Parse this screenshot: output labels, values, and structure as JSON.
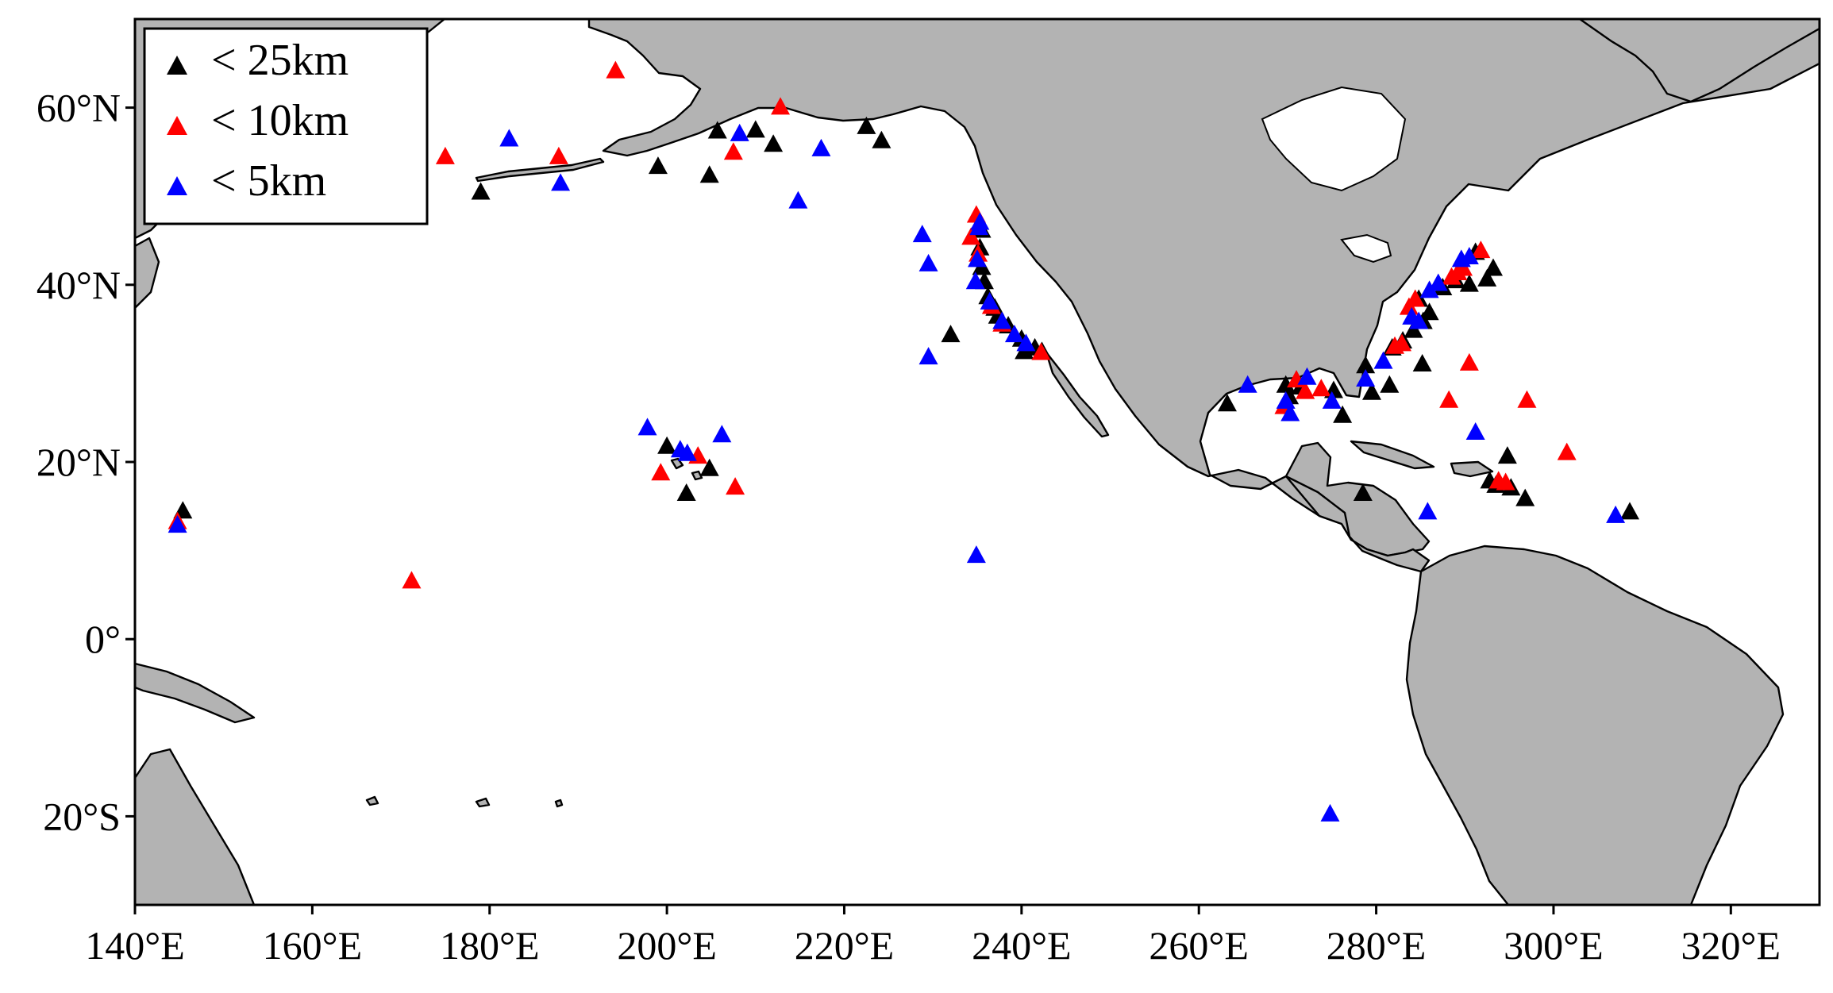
{
  "map": {
    "extent": {
      "lon": [
        140,
        330
      ],
      "lat": [
        -30,
        70
      ]
    },
    "land_color": "#b3b3b3",
    "ocean_color": "#ffffff"
  },
  "axes": {
    "x_ticks": [
      {
        "value": 140,
        "label": "140°E"
      },
      {
        "value": 160,
        "label": "160°E"
      },
      {
        "value": 180,
        "label": "180°E"
      },
      {
        "value": 200,
        "label": "200°E"
      },
      {
        "value": 220,
        "label": "220°E"
      },
      {
        "value": 240,
        "label": "240°E"
      },
      {
        "value": 260,
        "label": "260°E"
      },
      {
        "value": 280,
        "label": "280°E"
      },
      {
        "value": 300,
        "label": "300°E"
      },
      {
        "value": 320,
        "label": "320°E"
      }
    ],
    "y_ticks": [
      {
        "value": 60,
        "label": "60°N"
      },
      {
        "value": 40,
        "label": "40°N"
      },
      {
        "value": 20,
        "label": "20°N"
      },
      {
        "value": 0,
        "label": "0°"
      },
      {
        "value": -20,
        "label": "20°S"
      }
    ]
  },
  "legend": {
    "position": "top-left",
    "items": [
      {
        "key": "k25",
        "label": "< 25km",
        "color": "#000000"
      },
      {
        "key": "k10",
        "label": "< 10km",
        "color": "#ff0000"
      },
      {
        "key": "k5",
        "label": "< 5km",
        "color": "#0000ff"
      }
    ]
  },
  "chart_data": {
    "type": "scatter",
    "x_unit": "longitude (°E)",
    "y_unit": "latitude",
    "series": [
      {
        "name": "< 25km",
        "color": "#000000",
        "points": [
          [
            145.4,
            14.6
          ],
          [
            179,
            50.6
          ],
          [
            199,
            53.5
          ],
          [
            204.8,
            52.5
          ],
          [
            205.7,
            57.5
          ],
          [
            210,
            57.6
          ],
          [
            212,
            56
          ],
          [
            222.5,
            58
          ],
          [
            224.2,
            56.4
          ],
          [
            200,
            21.9
          ],
          [
            202.2,
            16.6
          ],
          [
            204.8,
            19.4
          ],
          [
            235.5,
            46.3
          ],
          [
            235.3,
            44.3
          ],
          [
            235.5,
            42.1
          ],
          [
            235.8,
            40.5
          ],
          [
            236.2,
            38.8
          ],
          [
            237,
            37.5
          ],
          [
            237.3,
            36.6
          ],
          [
            238.5,
            35.5
          ],
          [
            240,
            34
          ],
          [
            240.3,
            32.6
          ],
          [
            241.5,
            33
          ],
          [
            242.3,
            32.6
          ],
          [
            232,
            34.5
          ],
          [
            263.2,
            26.7
          ],
          [
            269.8,
            28.8
          ],
          [
            270.2,
            27.5
          ],
          [
            271.5,
            28.6
          ],
          [
            275.2,
            28.2
          ],
          [
            276.2,
            25.4
          ],
          [
            278.8,
            31
          ],
          [
            279.5,
            28
          ],
          [
            281.5,
            28.8
          ],
          [
            281.8,
            33
          ],
          [
            283,
            33.8
          ],
          [
            284.2,
            35
          ],
          [
            285.3,
            36
          ],
          [
            284.8,
            38.5
          ],
          [
            286,
            37
          ],
          [
            287.5,
            39.8
          ],
          [
            289,
            40.6
          ],
          [
            290.5,
            40.2
          ],
          [
            291.2,
            43.8
          ],
          [
            292.5,
            40.8
          ],
          [
            293.2,
            42
          ],
          [
            285.2,
            31.2
          ],
          [
            294.8,
            20.8
          ],
          [
            295.2,
            17.2
          ],
          [
            293.5,
            17.5
          ],
          [
            296.8,
            16
          ],
          [
            278.5,
            16.6
          ],
          [
            308.6,
            14.5
          ],
          [
            292.8,
            18
          ]
        ]
      },
      {
        "name": "< 10km",
        "color": "#ff0000",
        "points": [
          [
            194.2,
            64.3
          ],
          [
            175,
            54.6
          ],
          [
            187.8,
            54.6
          ],
          [
            207.5,
            55.1
          ],
          [
            212.8,
            60.2
          ],
          [
            171.2,
            6.7
          ],
          [
            199.3,
            18.9
          ],
          [
            203.5,
            20.8
          ],
          [
            207.7,
            17.3
          ],
          [
            234.3,
            45.5
          ],
          [
            234.9,
            48
          ],
          [
            235.1,
            43.6
          ],
          [
            236.6,
            37.7
          ],
          [
            237.8,
            35.7
          ],
          [
            242.2,
            32.5
          ],
          [
            271,
            29.4
          ],
          [
            272,
            28.1
          ],
          [
            273.8,
            28.4
          ],
          [
            269.6,
            26.4
          ],
          [
            282.1,
            33.2
          ],
          [
            282.9,
            33.5
          ],
          [
            283.7,
            37.6
          ],
          [
            284.4,
            38.5
          ],
          [
            288.5,
            41
          ],
          [
            289.2,
            41.5
          ],
          [
            288.2,
            27.1
          ],
          [
            290.5,
            31.3
          ],
          [
            297,
            27.1
          ],
          [
            301.5,
            21.2
          ],
          [
            291.8,
            44
          ],
          [
            293.8,
            18
          ],
          [
            294.6,
            17.8
          ],
          [
            144.8,
            13.4
          ],
          [
            289.8,
            42
          ]
        ]
      },
      {
        "name": "< 5km",
        "color": "#0000ff",
        "points": [
          [
            144.8,
            13
          ],
          [
            182.2,
            56.6
          ],
          [
            188,
            51.6
          ],
          [
            208.2,
            57.2
          ],
          [
            214.8,
            49.6
          ],
          [
            217.4,
            55.5
          ],
          [
            228.8,
            45.8
          ],
          [
            229.5,
            42.5
          ],
          [
            229.5,
            32
          ],
          [
            235.2,
            46.6
          ],
          [
            235,
            43
          ],
          [
            234.8,
            40.5
          ],
          [
            236.4,
            38.2
          ],
          [
            237.8,
            36
          ],
          [
            239.2,
            34.5
          ],
          [
            240.5,
            33.5
          ],
          [
            235.3,
            47.2
          ],
          [
            234.9,
            9.6
          ],
          [
            197.8,
            24
          ],
          [
            201.5,
            21.5
          ],
          [
            202.3,
            21.1
          ],
          [
            206.2,
            23.2
          ],
          [
            265.5,
            28.8
          ],
          [
            270.3,
            25.6
          ],
          [
            269.8,
            27
          ],
          [
            272.2,
            29.7
          ],
          [
            275,
            27
          ],
          [
            278.8,
            29.5
          ],
          [
            280.8,
            31.5
          ],
          [
            284,
            36.5
          ],
          [
            284.8,
            36
          ],
          [
            286,
            39.5
          ],
          [
            287,
            40.3
          ],
          [
            289.6,
            43
          ],
          [
            290.5,
            43.3
          ],
          [
            291.2,
            23.5
          ],
          [
            285.8,
            14.5
          ],
          [
            307,
            14.1
          ],
          [
            274.8,
            -19.6
          ]
        ]
      }
    ]
  }
}
